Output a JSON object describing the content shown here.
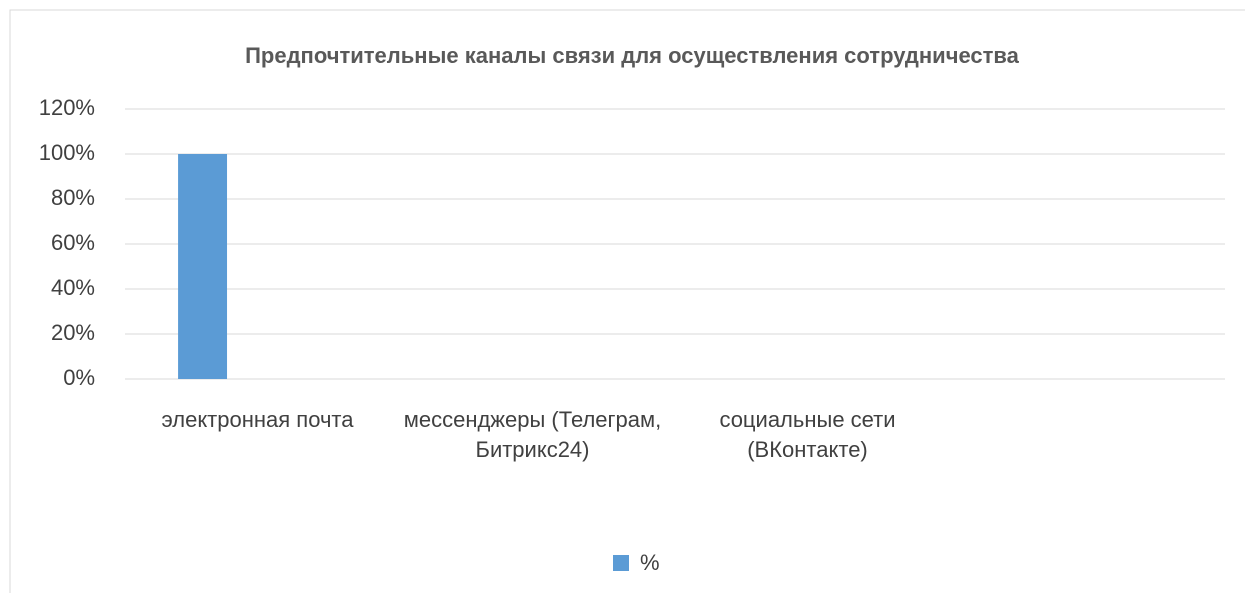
{
  "chart_data": {
    "type": "bar",
    "title": "Предпочтительные каналы связи для осуществления сотрудничества",
    "categories": [
      "электронная почта",
      "мессенджеры (Телеграм, Битрикс24)",
      "социальные сети (ВКонтакте)",
      null
    ],
    "series": [
      {
        "name": "%",
        "color": "#5b9bd5",
        "values": [
          100,
          0,
          0,
          null
        ]
      }
    ],
    "ylim": [
      0,
      120
    ],
    "yticks": [
      {
        "value": 0,
        "label": "0%"
      },
      {
        "value": 20,
        "label": "20%"
      },
      {
        "value": 40,
        "label": "40%"
      },
      {
        "value": 60,
        "label": "60%"
      },
      {
        "value": 80,
        "label": "80%"
      },
      {
        "value": 100,
        "label": "100%"
      },
      {
        "value": 120,
        "label": "120%"
      }
    ],
    "grid": true,
    "legend": "bottom"
  }
}
